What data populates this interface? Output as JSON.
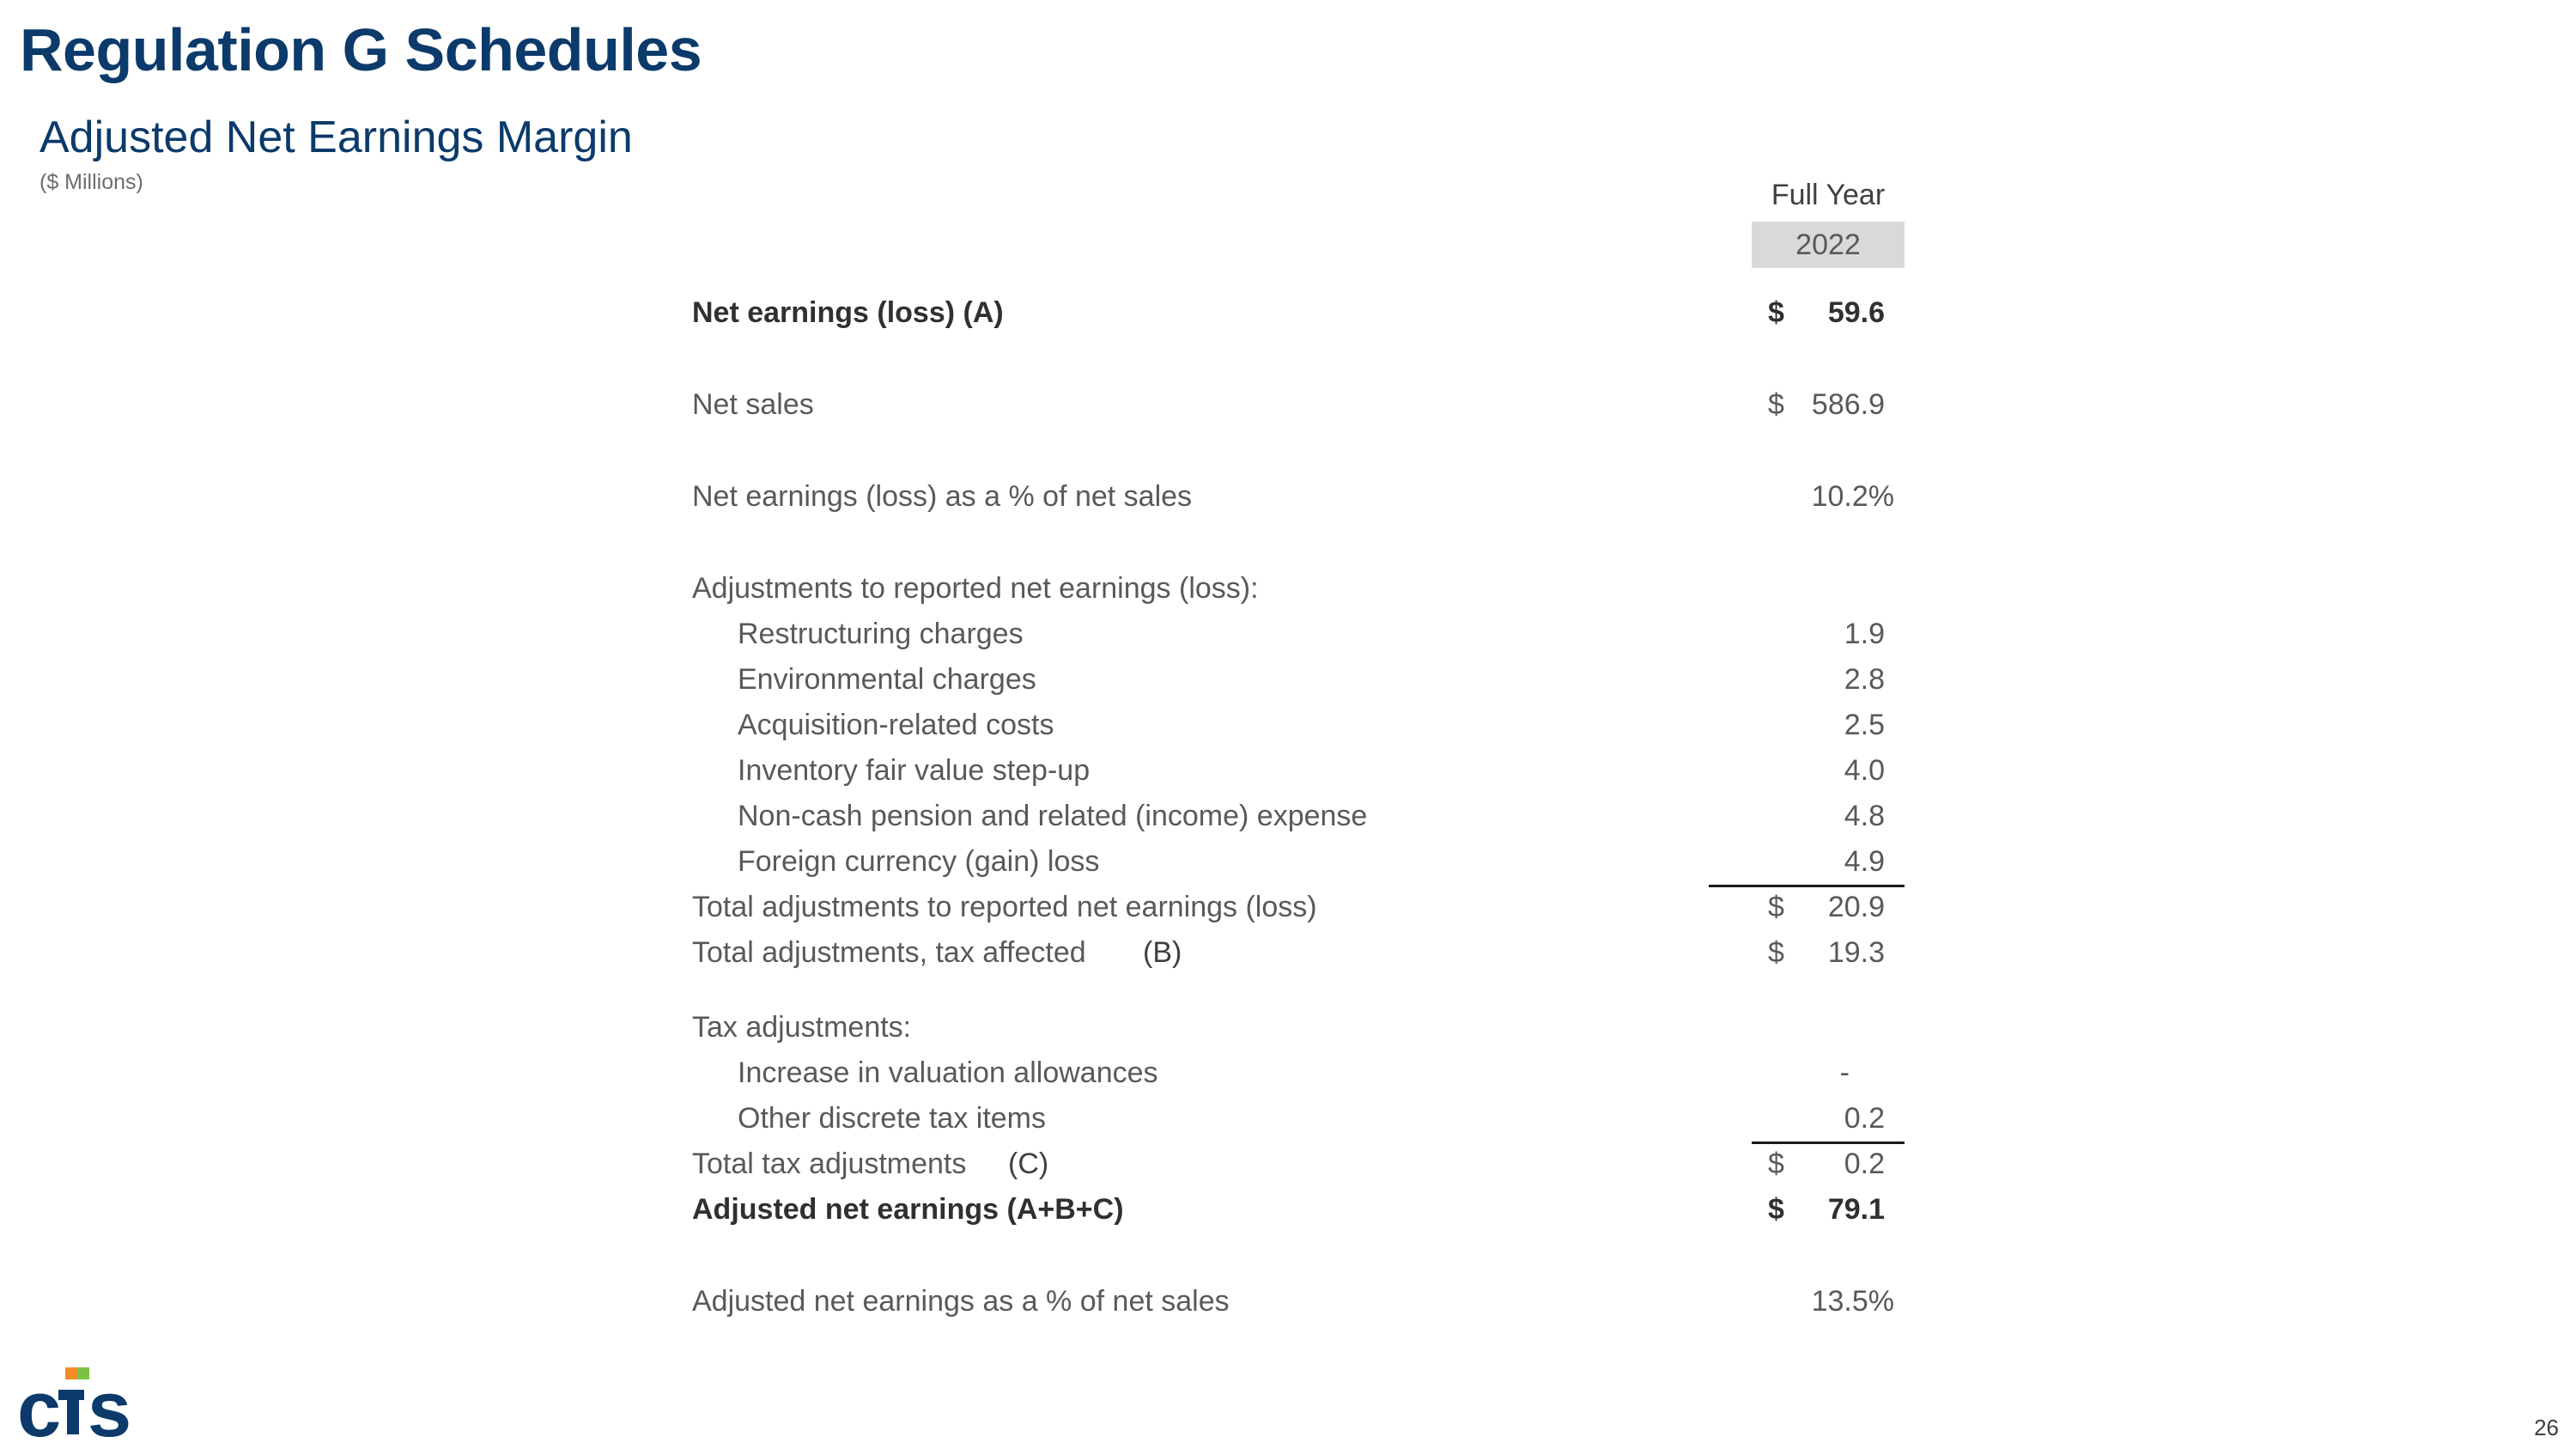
{
  "header": {
    "title": "Regulation G Schedules",
    "subtitle": "Adjusted Net Earnings Margin",
    "units": "($ Millions)"
  },
  "column": {
    "period_label": "Full Year",
    "year": "2022"
  },
  "rows": [
    {
      "label": "Net earnings (loss) (A)",
      "currency": "$",
      "value": "59.6"
    },
    {
      "label": "Net sales",
      "currency": "$",
      "value": "586.9"
    },
    {
      "label": "Net earnings (loss) as a % of net sales",
      "value": "10.2%"
    },
    {
      "label": "Adjustments to reported net earnings (loss):"
    },
    {
      "label": "Restructuring charges",
      "value": "1.9"
    },
    {
      "label": "Environmental charges",
      "value": "2.8"
    },
    {
      "label": "Acquisition-related costs",
      "value": "2.5"
    },
    {
      "label": "Inventory fair value step-up",
      "value": "4.0"
    },
    {
      "label": "Non-cash pension and related (income) expense",
      "value": "4.8"
    },
    {
      "label": "Foreign currency (gain) loss",
      "value": "4.9"
    },
    {
      "label": "Total adjustments to reported net earnings (loss)",
      "currency": "$",
      "value": "20.9"
    },
    {
      "label": "Total adjustments, tax affected",
      "ref": "(B)",
      "currency": "$",
      "value": "19.3"
    },
    {
      "label": "Tax adjustments:"
    },
    {
      "label": "Increase in valuation allowances",
      "value": "-"
    },
    {
      "label": "Other discrete tax items",
      "value": "0.2"
    },
    {
      "label": "Total tax adjustments",
      "ref": "(C)",
      "currency": "$",
      "value": "0.2"
    },
    {
      "label": "Adjusted net earnings (A+B+C)",
      "currency": "$",
      "value": "79.1"
    },
    {
      "label": "Adjusted net earnings as a % of net sales",
      "value": "13.5%"
    }
  ],
  "footer": {
    "logo_text": "CTS",
    "page_number": "26"
  },
  "colors": {
    "title": "#0b3a6b",
    "logo_blue": "#0b3a6b",
    "logo_orange": "#f28c28",
    "logo_green": "#7cc242",
    "year_shade": "#d9d9d9"
  }
}
